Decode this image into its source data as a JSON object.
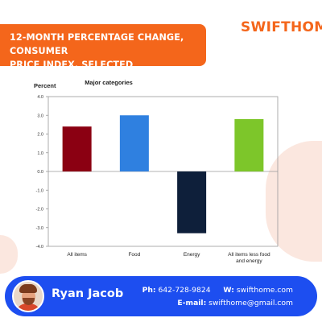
{
  "banner": {
    "title_line1": "12-MONTH PERCENTAGE CHANGE, CONSUMER",
    "title_line2": "PRICE INDEX, SELECTED CATEGORIES"
  },
  "brand": {
    "name": "SWIFTHOME",
    "color": "#f4661b"
  },
  "chart_data": {
    "type": "bar",
    "title": "Major categories",
    "ylabel": "Percent",
    "xlabel": "",
    "ylim": [
      -4.0,
      4.0
    ],
    "yticks": [
      "4.0",
      "3.0",
      "2.0",
      "1.0",
      "0.0",
      "-1.0",
      "-2.0",
      "-3.0",
      "-4.0"
    ],
    "grid": false,
    "legend": "none",
    "categories": [
      {
        "lines": [
          "All items"
        ]
      },
      {
        "lines": [
          "Food"
        ]
      },
      {
        "lines": [
          "Energy"
        ]
      },
      {
        "lines": [
          "All items less food",
          "and energy"
        ]
      }
    ],
    "values": [
      2.4,
      3.0,
      -3.3,
      2.8
    ],
    "colors": [
      "#8b0012",
      "#2f80e0",
      "#0e1f3a",
      "#7dc62a"
    ]
  },
  "footer": {
    "background_color": "#1d4ef0",
    "avatar_icon": "person-avatar-icon",
    "name": "Ryan Jacob",
    "phone_label": "Ph:",
    "phone": "642-728-9824",
    "web_label": "W:",
    "web": "swifthome.com",
    "email_label": "E-mail:",
    "email": "swifthome@gmail.com"
  }
}
